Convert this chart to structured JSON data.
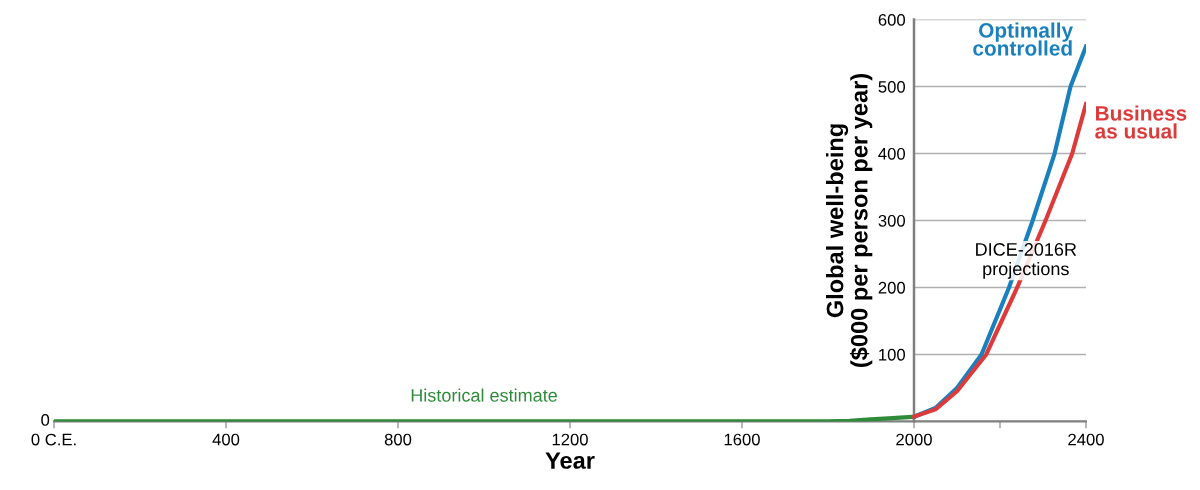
{
  "chart_data": {
    "type": "line",
    "xlabel": "Year",
    "ylabel": "Global well-being\n($000 per person per year)",
    "xlim": [
      0,
      2400
    ],
    "ylim": [
      0,
      600
    ],
    "xticks": [
      {
        "value": 0,
        "label": "0 C.E."
      },
      400,
      800,
      1200,
      1600,
      2000,
      {
        "value": 2200,
        "label": null
      },
      2400
    ],
    "yticks": [
      {
        "value": 0,
        "label": null
      },
      100,
      200,
      300,
      400,
      500,
      600
    ],
    "grid": "y",
    "legend": false,
    "marker": "none",
    "line_style": "solid",
    "series": [
      {
        "name": "Historical estimate",
        "color": "#2e8b3a",
        "x": [
          0,
          400,
          800,
          1200,
          1600,
          1800,
          1850,
          1900,
          1950,
          2000
        ],
        "values": [
          0,
          0,
          0,
          0,
          0,
          0,
          1,
          3,
          5,
          7
        ]
      },
      {
        "name": "Optimally controlled",
        "color": "#1a80bd",
        "x": [
          2000,
          2050,
          2100,
          2157,
          2221,
          2276,
          2327,
          2364,
          2400
        ],
        "values": [
          7,
          20,
          50,
          100,
          200,
          300,
          400,
          500,
          560
        ]
      },
      {
        "name": "Business as usual",
        "color": "#dd3b3b",
        "x": [
          2000,
          2050,
          2100,
          2168,
          2240,
          2306,
          2368,
          2400
        ],
        "values": [
          7,
          18,
          45,
          100,
          200,
          300,
          400,
          474
        ]
      }
    ],
    "annotations": [
      {
        "text": "0",
        "x": 0,
        "y": 0
      },
      {
        "text": "DICE-2016R\nprojections",
        "x": 2260,
        "y": 240
      }
    ]
  }
}
